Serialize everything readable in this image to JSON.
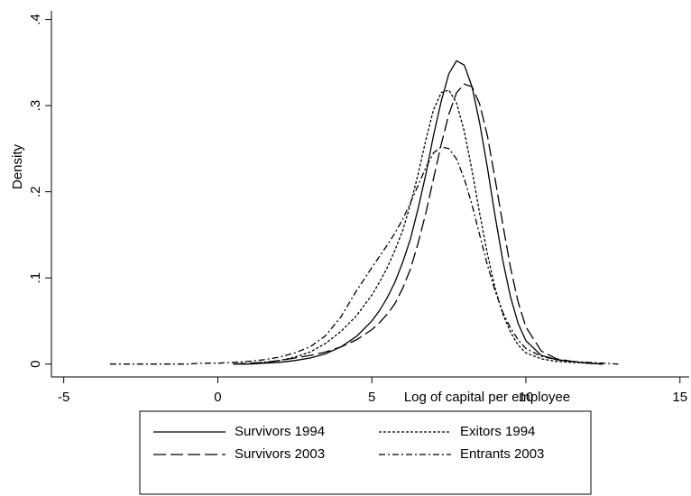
{
  "chart_data": {
    "type": "line",
    "xlabel": "Log of capital per employee",
    "ylabel": "Density",
    "x": [
      -3.5,
      -3,
      -2.5,
      -2,
      -1.5,
      -1,
      -0.5,
      0,
      0.5,
      1,
      1.5,
      2,
      2.5,
      3,
      3.5,
      4,
      4.5,
      5,
      5.25,
      5.5,
      5.75,
      6,
      6.25,
      6.5,
      6.75,
      7,
      7.25,
      7.5,
      7.75,
      8,
      8.25,
      8.5,
      8.75,
      9,
      9.25,
      9.5,
      9.75,
      10,
      10.5,
      11,
      11.5,
      12,
      12.5,
      13
    ],
    "series": [
      {
        "name": "Survivors 1994",
        "color": "#000000",
        "dash": "solid",
        "values": [
          null,
          null,
          null,
          null,
          null,
          null,
          null,
          null,
          0,
          0,
          0.001,
          0.002,
          0.004,
          0.007,
          0.012,
          0.02,
          0.032,
          0.05,
          0.062,
          0.077,
          0.095,
          0.118,
          0.145,
          0.18,
          0.22,
          0.265,
          0.305,
          0.337,
          0.352,
          0.347,
          0.322,
          0.28,
          0.228,
          0.172,
          0.12,
          0.078,
          0.047,
          0.027,
          0.01,
          0.005,
          0.003,
          0.001,
          0,
          null
        ]
      },
      {
        "name": "Exitors 1994",
        "color": "#000000",
        "dash": "short",
        "values": [
          null,
          null,
          null,
          null,
          null,
          null,
          null,
          null,
          null,
          null,
          0.002,
          0.004,
          0.008,
          0.014,
          0.024,
          0.038,
          0.056,
          0.08,
          0.095,
          0.112,
          0.132,
          0.155,
          0.185,
          0.22,
          0.26,
          0.295,
          0.315,
          0.318,
          0.303,
          0.27,
          0.225,
          0.175,
          0.128,
          0.088,
          0.058,
          0.037,
          0.022,
          0.013,
          0.006,
          0.003,
          0.002,
          0.001,
          0,
          null
        ]
      },
      {
        "name": "Survivors 2003",
        "color": "#000000",
        "dash": "long",
        "values": [
          null,
          null,
          null,
          null,
          null,
          null,
          null,
          null,
          0,
          0.001,
          0.002,
          0.004,
          0.007,
          0.01,
          0.014,
          0.02,
          0.028,
          0.04,
          0.048,
          0.058,
          0.07,
          0.088,
          0.11,
          0.14,
          0.175,
          0.215,
          0.255,
          0.29,
          0.315,
          0.325,
          0.322,
          0.302,
          0.265,
          0.215,
          0.162,
          0.112,
          0.072,
          0.043,
          0.015,
          0.006,
          0.003,
          0.001,
          0,
          null
        ]
      },
      {
        "name": "Entrants 2003",
        "color": "#000000",
        "dash": "dashdot",
        "values": [
          0,
          0,
          0,
          0,
          0,
          0,
          0.001,
          0.001,
          0.002,
          0.003,
          0.005,
          0.008,
          0.013,
          0.02,
          0.033,
          0.055,
          0.085,
          0.112,
          0.125,
          0.138,
          0.152,
          0.168,
          0.187,
          0.207,
          0.228,
          0.245,
          0.252,
          0.25,
          0.238,
          0.215,
          0.185,
          0.15,
          0.115,
          0.085,
          0.06,
          0.042,
          0.028,
          0.018,
          0.009,
          0.005,
          0.003,
          0.002,
          0.001,
          0
        ]
      }
    ],
    "xlim": [
      -5.4,
      15.3
    ],
    "ylim": [
      -0.015,
      0.41
    ],
    "xticks": [
      -5,
      0,
      5,
      10,
      15
    ],
    "yticks": [
      0,
      {
        "value": 0.1,
        "label": ".1"
      },
      {
        "value": 0.2,
        "label": ".2"
      },
      {
        "value": 0.3,
        "label": ".3"
      },
      {
        "value": 0.4,
        "label": ".4"
      }
    ],
    "grid": false,
    "legend": "bottom"
  }
}
